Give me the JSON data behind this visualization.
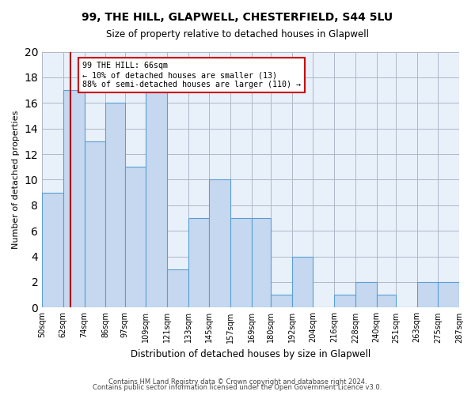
{
  "title1": "99, THE HILL, GLAPWELL, CHESTERFIELD, S44 5LU",
  "title2": "Size of property relative to detached houses in Glapwell",
  "xlabel": "Distribution of detached houses by size in Glapwell",
  "ylabel": "Number of detached properties",
  "bins": [
    50,
    62,
    74,
    86,
    97,
    109,
    121,
    133,
    145,
    157,
    169,
    180,
    192,
    204,
    216,
    228,
    240,
    251,
    263,
    275,
    287
  ],
  "bin_labels": [
    "50sqm",
    "62sqm",
    "74sqm",
    "86sqm",
    "97sqm",
    "109sqm",
    "121sqm",
    "133sqm",
    "145sqm",
    "157sqm",
    "169sqm",
    "180sqm",
    "192sqm",
    "204sqm",
    "216sqm",
    "228sqm",
    "240sqm",
    "251sqm",
    "263sqm",
    "275sqm",
    "287sqm"
  ],
  "counts": [
    9,
    17,
    13,
    16,
    11,
    17,
    3,
    7,
    10,
    7,
    7,
    1,
    4,
    0,
    1,
    2,
    1,
    0,
    2,
    2
  ],
  "bar_facecolor": "#c5d8f0",
  "bar_edgecolor": "#5a9fd4",
  "background_color": "#e8f0fa",
  "grid_color": "#b0b8c8",
  "property_line_x": 66,
  "property_line_color": "#aa0000",
  "annotation_text": "99 THE HILL: 66sqm\n← 10% of detached houses are smaller (13)\n88% of semi-detached houses are larger (110) →",
  "annotation_box_edgecolor": "#cc0000",
  "annotation_box_facecolor": "#ffffff",
  "footer1": "Contains HM Land Registry data © Crown copyright and database right 2024.",
  "footer2": "Contains public sector information licensed under the Open Government Licence v3.0.",
  "ylim": [
    0,
    20
  ],
  "yticks": [
    0,
    2,
    4,
    6,
    8,
    10,
    12,
    14,
    16,
    18,
    20
  ]
}
